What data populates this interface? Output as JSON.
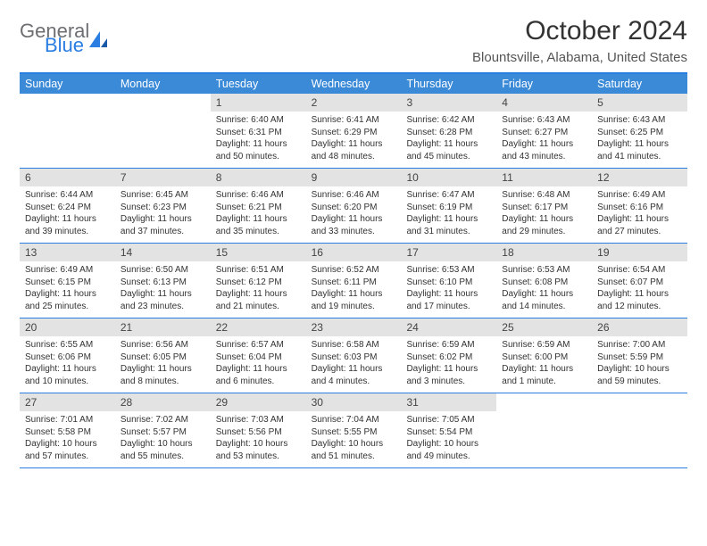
{
  "logo": {
    "word1": "General",
    "word2": "Blue",
    "color_gray": "#6d6e71",
    "color_blue": "#2a7de1"
  },
  "title": "October 2024",
  "subtitle": "Blountsville, Alabama, United States",
  "colors": {
    "header_bg": "#3b8ad8",
    "rule": "#2a7de1",
    "daybar": "#e3e3e3",
    "text": "#333333"
  },
  "daynames": [
    "Sunday",
    "Monday",
    "Tuesday",
    "Wednesday",
    "Thursday",
    "Friday",
    "Saturday"
  ],
  "weeks": [
    [
      null,
      null,
      {
        "n": "1",
        "sr": "Sunrise: 6:40 AM",
        "ss": "Sunset: 6:31 PM",
        "dl": "Daylight: 11 hours and 50 minutes."
      },
      {
        "n": "2",
        "sr": "Sunrise: 6:41 AM",
        "ss": "Sunset: 6:29 PM",
        "dl": "Daylight: 11 hours and 48 minutes."
      },
      {
        "n": "3",
        "sr": "Sunrise: 6:42 AM",
        "ss": "Sunset: 6:28 PM",
        "dl": "Daylight: 11 hours and 45 minutes."
      },
      {
        "n": "4",
        "sr": "Sunrise: 6:43 AM",
        "ss": "Sunset: 6:27 PM",
        "dl": "Daylight: 11 hours and 43 minutes."
      },
      {
        "n": "5",
        "sr": "Sunrise: 6:43 AM",
        "ss": "Sunset: 6:25 PM",
        "dl": "Daylight: 11 hours and 41 minutes."
      }
    ],
    [
      {
        "n": "6",
        "sr": "Sunrise: 6:44 AM",
        "ss": "Sunset: 6:24 PM",
        "dl": "Daylight: 11 hours and 39 minutes."
      },
      {
        "n": "7",
        "sr": "Sunrise: 6:45 AM",
        "ss": "Sunset: 6:23 PM",
        "dl": "Daylight: 11 hours and 37 minutes."
      },
      {
        "n": "8",
        "sr": "Sunrise: 6:46 AM",
        "ss": "Sunset: 6:21 PM",
        "dl": "Daylight: 11 hours and 35 minutes."
      },
      {
        "n": "9",
        "sr": "Sunrise: 6:46 AM",
        "ss": "Sunset: 6:20 PM",
        "dl": "Daylight: 11 hours and 33 minutes."
      },
      {
        "n": "10",
        "sr": "Sunrise: 6:47 AM",
        "ss": "Sunset: 6:19 PM",
        "dl": "Daylight: 11 hours and 31 minutes."
      },
      {
        "n": "11",
        "sr": "Sunrise: 6:48 AM",
        "ss": "Sunset: 6:17 PM",
        "dl": "Daylight: 11 hours and 29 minutes."
      },
      {
        "n": "12",
        "sr": "Sunrise: 6:49 AM",
        "ss": "Sunset: 6:16 PM",
        "dl": "Daylight: 11 hours and 27 minutes."
      }
    ],
    [
      {
        "n": "13",
        "sr": "Sunrise: 6:49 AM",
        "ss": "Sunset: 6:15 PM",
        "dl": "Daylight: 11 hours and 25 minutes."
      },
      {
        "n": "14",
        "sr": "Sunrise: 6:50 AM",
        "ss": "Sunset: 6:13 PM",
        "dl": "Daylight: 11 hours and 23 minutes."
      },
      {
        "n": "15",
        "sr": "Sunrise: 6:51 AM",
        "ss": "Sunset: 6:12 PM",
        "dl": "Daylight: 11 hours and 21 minutes."
      },
      {
        "n": "16",
        "sr": "Sunrise: 6:52 AM",
        "ss": "Sunset: 6:11 PM",
        "dl": "Daylight: 11 hours and 19 minutes."
      },
      {
        "n": "17",
        "sr": "Sunrise: 6:53 AM",
        "ss": "Sunset: 6:10 PM",
        "dl": "Daylight: 11 hours and 17 minutes."
      },
      {
        "n": "18",
        "sr": "Sunrise: 6:53 AM",
        "ss": "Sunset: 6:08 PM",
        "dl": "Daylight: 11 hours and 14 minutes."
      },
      {
        "n": "19",
        "sr": "Sunrise: 6:54 AM",
        "ss": "Sunset: 6:07 PM",
        "dl": "Daylight: 11 hours and 12 minutes."
      }
    ],
    [
      {
        "n": "20",
        "sr": "Sunrise: 6:55 AM",
        "ss": "Sunset: 6:06 PM",
        "dl": "Daylight: 11 hours and 10 minutes."
      },
      {
        "n": "21",
        "sr": "Sunrise: 6:56 AM",
        "ss": "Sunset: 6:05 PM",
        "dl": "Daylight: 11 hours and 8 minutes."
      },
      {
        "n": "22",
        "sr": "Sunrise: 6:57 AM",
        "ss": "Sunset: 6:04 PM",
        "dl": "Daylight: 11 hours and 6 minutes."
      },
      {
        "n": "23",
        "sr": "Sunrise: 6:58 AM",
        "ss": "Sunset: 6:03 PM",
        "dl": "Daylight: 11 hours and 4 minutes."
      },
      {
        "n": "24",
        "sr": "Sunrise: 6:59 AM",
        "ss": "Sunset: 6:02 PM",
        "dl": "Daylight: 11 hours and 3 minutes."
      },
      {
        "n": "25",
        "sr": "Sunrise: 6:59 AM",
        "ss": "Sunset: 6:00 PM",
        "dl": "Daylight: 11 hours and 1 minute."
      },
      {
        "n": "26",
        "sr": "Sunrise: 7:00 AM",
        "ss": "Sunset: 5:59 PM",
        "dl": "Daylight: 10 hours and 59 minutes."
      }
    ],
    [
      {
        "n": "27",
        "sr": "Sunrise: 7:01 AM",
        "ss": "Sunset: 5:58 PM",
        "dl": "Daylight: 10 hours and 57 minutes."
      },
      {
        "n": "28",
        "sr": "Sunrise: 7:02 AM",
        "ss": "Sunset: 5:57 PM",
        "dl": "Daylight: 10 hours and 55 minutes."
      },
      {
        "n": "29",
        "sr": "Sunrise: 7:03 AM",
        "ss": "Sunset: 5:56 PM",
        "dl": "Daylight: 10 hours and 53 minutes."
      },
      {
        "n": "30",
        "sr": "Sunrise: 7:04 AM",
        "ss": "Sunset: 5:55 PM",
        "dl": "Daylight: 10 hours and 51 minutes."
      },
      {
        "n": "31",
        "sr": "Sunrise: 7:05 AM",
        "ss": "Sunset: 5:54 PM",
        "dl": "Daylight: 10 hours and 49 minutes."
      },
      null,
      null
    ]
  ]
}
